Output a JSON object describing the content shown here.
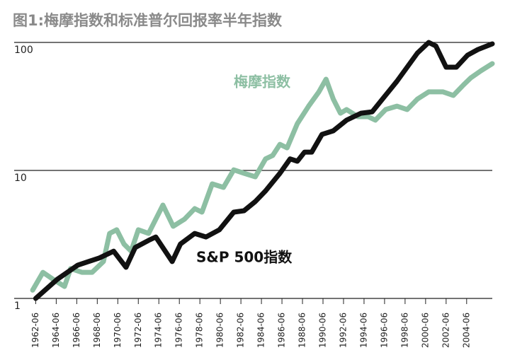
{
  "chart_data": {
    "type": "line",
    "title": "图1:梅摩指数和标准普尔回报率半年指数",
    "log_scale": true,
    "grid": true,
    "ylim": [
      1,
      100
    ],
    "yticks": [
      1,
      10,
      100
    ],
    "xlim": [
      1960.4,
      2007.0
    ],
    "xticks": [
      {
        "value": 1962.5,
        "label": "1962-06"
      },
      {
        "value": 1964.5,
        "label": "1964-06"
      },
      {
        "value": 1966.5,
        "label": "1966-06"
      },
      {
        "value": 1968.5,
        "label": "1968-06"
      },
      {
        "value": 1970.5,
        "label": "1970-06"
      },
      {
        "value": 1972.5,
        "label": "1972-06"
      },
      {
        "value": 1974.5,
        "label": "1974-06"
      },
      {
        "value": 1976.5,
        "label": "1976-06"
      },
      {
        "value": 1978.5,
        "label": "1978-06"
      },
      {
        "value": 1980.5,
        "label": "1980-06"
      },
      {
        "value": 1982.5,
        "label": "1982-06"
      },
      {
        "value": 1984.5,
        "label": "1984-06"
      },
      {
        "value": 1986.5,
        "label": "1986-06"
      },
      {
        "value": 1988.5,
        "label": "1988-06"
      },
      {
        "value": 1990.5,
        "label": "1990-06"
      },
      {
        "value": 1992.5,
        "label": "1992-06"
      },
      {
        "value": 1994.5,
        "label": "1994-06"
      },
      {
        "value": 1996.5,
        "label": "1996-06"
      },
      {
        "value": 1998.5,
        "label": "1998-06"
      },
      {
        "value": 2000.5,
        "label": "2000-06"
      },
      {
        "value": 2002.5,
        "label": "2002-06"
      },
      {
        "value": 2004.5,
        "label": "2004-06"
      }
    ],
    "series": [
      {
        "name": "梅摩指数",
        "color": "#8dbfa3",
        "x": [
          1962.2,
          1963.2,
          1964.2,
          1965.3,
          1965.9,
          1967.0,
          1968.0,
          1969.1,
          1969.7,
          1970.4,
          1971.1,
          1971.8,
          1972.5,
          1973.5,
          1974.9,
          1975.9,
          1977.0,
          1978.0,
          1978.7,
          1979.7,
          1980.8,
          1981.8,
          1982.8,
          1983.9,
          1984.9,
          1985.6,
          1986.3,
          1987.0,
          1988.0,
          1989.1,
          1990.1,
          1990.8,
          1991.5,
          1992.2,
          1992.8,
          1993.9,
          1994.9,
          1995.6,
          1996.6,
          1997.7,
          1998.7,
          1999.7,
          2000.8,
          2002.2,
          2003.2,
          2004.2,
          2004.9,
          2005.9,
          2007.0
        ],
        "values": [
          1.16,
          1.6,
          1.41,
          1.24,
          1.71,
          1.6,
          1.6,
          1.94,
          3.22,
          3.44,
          2.66,
          2.34,
          3.44,
          3.22,
          5.36,
          3.66,
          4.16,
          5.03,
          4.72,
          7.85,
          7.37,
          10.1,
          9.5,
          8.92,
          12.3,
          13.1,
          16.0,
          15.0,
          23.2,
          31.8,
          41.1,
          51.6,
          36.1,
          28.0,
          29.9,
          26.3,
          26.3,
          24.7,
          29.9,
          31.8,
          29.9,
          36.1,
          41.1,
          41.1,
          38.5,
          46.6,
          52.9,
          60.1,
          68.3
        ]
      },
      {
        "name": "S&P 500指数",
        "color": "#111111",
        "x": [
          1962.5,
          1964.6,
          1966.6,
          1968.7,
          1970.1,
          1971.3,
          1972.2,
          1973.5,
          1974.2,
          1975.8,
          1976.6,
          1978.0,
          1979.1,
          1980.4,
          1981.8,
          1982.8,
          1983.9,
          1984.9,
          1986.3,
          1987.3,
          1988.0,
          1988.7,
          1989.4,
          1990.4,
          1991.5,
          1992.8,
          1994.2,
          1995.3,
          1996.3,
          1997.7,
          1998.7,
          1999.7,
          2000.8,
          2001.5,
          2002.5,
          2003.5,
          2004.6,
          2005.6,
          2007.0
        ],
        "values": [
          1.0,
          1.41,
          1.82,
          2.07,
          2.34,
          1.75,
          2.5,
          2.84,
          3.02,
          1.94,
          2.66,
          3.22,
          3.02,
          3.44,
          4.72,
          4.84,
          5.71,
          6.92,
          9.5,
          12.3,
          11.8,
          13.9,
          13.9,
          19.1,
          20.4,
          24.7,
          28.0,
          28.7,
          36.1,
          49.7,
          64.1,
          82.6,
          100,
          93.8,
          64.1,
          64.1,
          79.6,
          88.1,
          97.5
        ]
      }
    ]
  }
}
